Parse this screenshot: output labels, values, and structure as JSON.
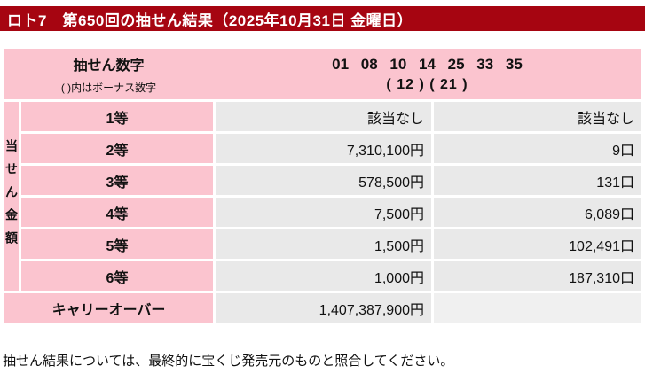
{
  "banner": {
    "title": "ロト7　第650回の抽せん結果（2025年10月31日 金曜日）"
  },
  "draw": {
    "numbers_label": "抽せん数字",
    "bonus_note": "( )内はボーナス数字",
    "main_numbers": "01 08 10 14 25 33 35",
    "bonus_numbers": "( 12 ) ( 21 )"
  },
  "table": {
    "side_label": "当せん金額",
    "rows": [
      {
        "rank": "1等",
        "amount": "該当なし",
        "count": "該当なし"
      },
      {
        "rank": "2等",
        "amount": "7,310,100円",
        "count": "9口"
      },
      {
        "rank": "3等",
        "amount": "578,500円",
        "count": "131口"
      },
      {
        "rank": "4等",
        "amount": "7,500円",
        "count": "6,089口"
      },
      {
        "rank": "5等",
        "amount": "1,500円",
        "count": "102,491口"
      },
      {
        "rank": "6等",
        "amount": "1,000円",
        "count": "187,310口"
      }
    ],
    "carryover": {
      "label": "キャリーオーバー",
      "amount": "1,407,387,900円"
    }
  },
  "footer": {
    "note": "抽せん結果については、最終的に宝くじ発売元のものと照合してください。"
  },
  "colors": {
    "banner_red": "#a60511",
    "pink": "#fbc4cf",
    "cell_gray": "#e9e9e9",
    "cell_gray_light": "#f0f0f0"
  }
}
